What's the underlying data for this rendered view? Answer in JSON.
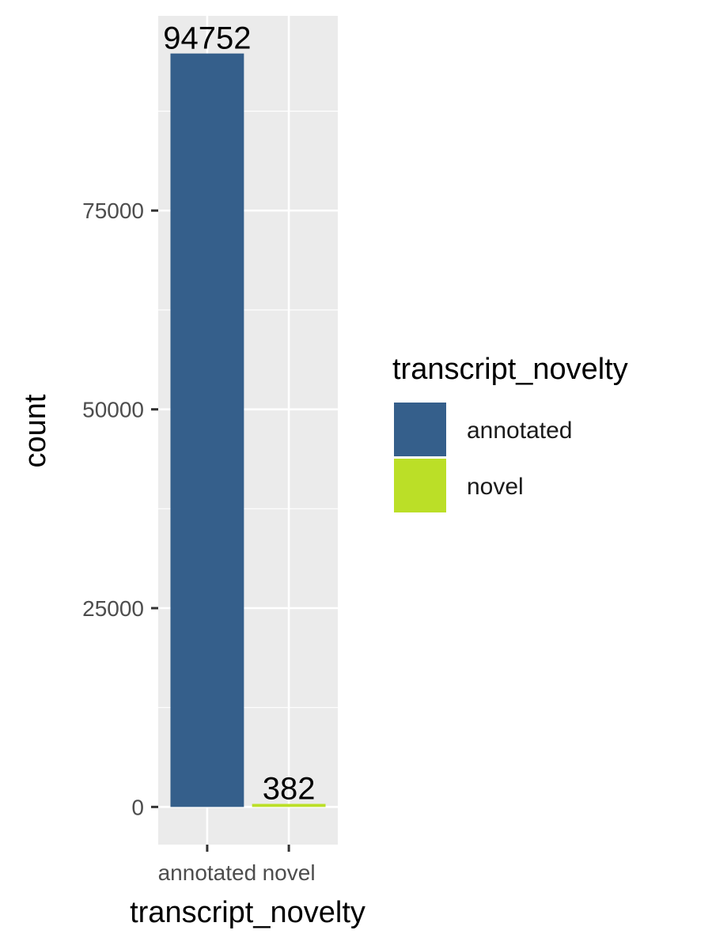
{
  "chart_data": {
    "type": "bar",
    "categories": [
      "annotated",
      "novel"
    ],
    "values": [
      94752,
      382
    ],
    "data_labels": [
      "94752",
      "382"
    ],
    "xlabel": "transcript_novelty",
    "ylabel": "count",
    "y_ticks": [
      0,
      25000,
      50000,
      75000
    ],
    "y_tick_labels": [
      "0",
      "25000",
      "50000",
      "75000"
    ],
    "ylim": [
      -4738,
      99490
    ],
    "grid": true,
    "legend": {
      "title": "transcript_novelty",
      "position": "right",
      "entries": [
        "annotated",
        "novel"
      ]
    },
    "colors": {
      "annotated": "#355f8b",
      "novel": "#bbdf27",
      "panel_background": "#ebebeb",
      "grid": "#ffffff"
    }
  }
}
